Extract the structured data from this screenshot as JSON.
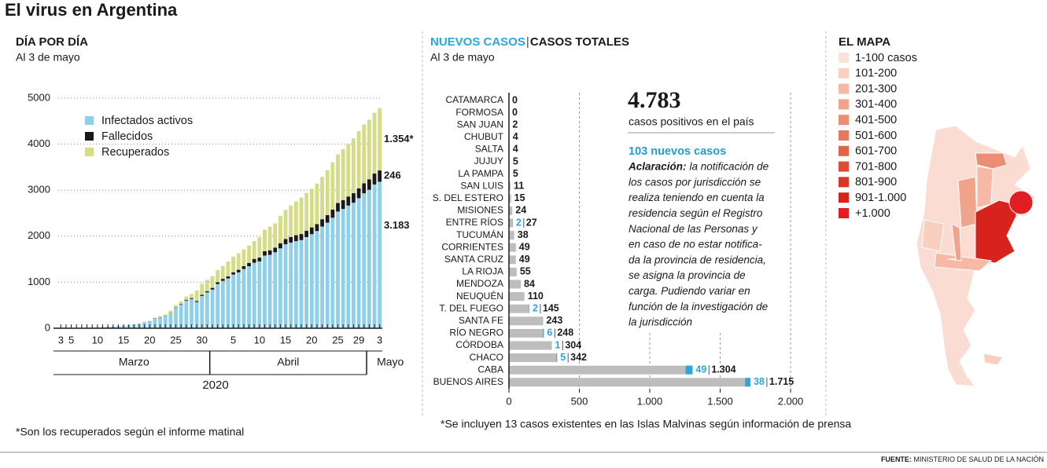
{
  "title": "El virus en Argentina",
  "chart_data": [
    {
      "type": "bar",
      "stacked": true,
      "title": "DÍA POR DÍA",
      "subtitle": "Al 3 de mayo",
      "x": [
        "2020-03-03",
        "2020-03-04",
        "2020-03-05",
        "2020-03-06",
        "2020-03-07",
        "2020-03-08",
        "2020-03-09",
        "2020-03-10",
        "2020-03-11",
        "2020-03-12",
        "2020-03-13",
        "2020-03-14",
        "2020-03-15",
        "2020-03-16",
        "2020-03-17",
        "2020-03-18",
        "2020-03-19",
        "2020-03-20",
        "2020-03-21",
        "2020-03-22",
        "2020-03-23",
        "2020-03-24",
        "2020-03-25",
        "2020-03-26",
        "2020-03-27",
        "2020-03-28",
        "2020-03-29",
        "2020-03-30",
        "2020-03-31",
        "2020-04-01",
        "2020-04-02",
        "2020-04-03",
        "2020-04-04",
        "2020-04-05",
        "2020-04-06",
        "2020-04-07",
        "2020-04-08",
        "2020-04-09",
        "2020-04-10",
        "2020-04-11",
        "2020-04-12",
        "2020-04-13",
        "2020-04-14",
        "2020-04-15",
        "2020-04-16",
        "2020-04-17",
        "2020-04-18",
        "2020-04-19",
        "2020-04-20",
        "2020-04-21",
        "2020-04-22",
        "2020-04-23",
        "2020-04-24",
        "2020-04-25",
        "2020-04-26",
        "2020-04-27",
        "2020-04-28",
        "2020-04-29",
        "2020-04-30",
        "2020-05-01",
        "2020-05-02",
        "2020-05-03"
      ],
      "xticks": [
        {
          "value": "2020-03-03",
          "label": "3"
        },
        {
          "value": "2020-03-05",
          "label": "5"
        },
        {
          "value": "2020-03-10",
          "label": "10"
        },
        {
          "value": "2020-03-15",
          "label": "15"
        },
        {
          "value": "2020-03-20",
          "label": "20"
        },
        {
          "value": "2020-03-25",
          "label": "25"
        },
        {
          "value": "2020-03-30",
          "label": "30"
        },
        {
          "value": "2020-04-05",
          "label": "5"
        },
        {
          "value": "2020-04-10",
          "label": "10"
        },
        {
          "value": "2020-04-15",
          "label": "15"
        },
        {
          "value": "2020-04-20",
          "label": "20"
        },
        {
          "value": "2020-04-25",
          "label": "25"
        },
        {
          "value": "2020-04-29",
          "label": "29"
        },
        {
          "value": "2020-05-03",
          "label": "3"
        }
      ],
      "months": [
        "Marzo",
        "Abril",
        "Mayo"
      ],
      "year": "2020",
      "series": [
        {
          "name": "Infectados activos",
          "color": "#8ecfea",
          "end_label": "3.183",
          "values": [
            1,
            1,
            2,
            2,
            7,
            11,
            16,
            18,
            20,
            29,
            32,
            43,
            54,
            63,
            77,
            94,
            125,
            152,
            218,
            235,
            270,
            329,
            442,
            514,
            601,
            635,
            569,
            702,
            779,
            841,
            960,
            1030,
            1082,
            1168,
            1214,
            1287,
            1348,
            1424,
            1452,
            1579,
            1595,
            1651,
            1736,
            1825,
            1861,
            1892,
            1915,
            1981,
            2044,
            2112,
            2210,
            2294,
            2401,
            2536,
            2593,
            2666,
            2728,
            2826,
            2933,
            3009,
            3124,
            3183
          ]
        },
        {
          "name": "Fallecidos",
          "color": "#1a1a1a",
          "end_label": "246",
          "values": [
            0,
            0,
            0,
            0,
            1,
            1,
            1,
            1,
            1,
            2,
            2,
            2,
            2,
            2,
            2,
            3,
            3,
            3,
            4,
            4,
            4,
            6,
            8,
            12,
            17,
            19,
            23,
            24,
            27,
            36,
            39,
            43,
            44,
            48,
            56,
            63,
            72,
            82,
            83,
            95,
            98,
            101,
            111,
            115,
            123,
            129,
            132,
            136,
            147,
            152,
            159,
            165,
            176,
            185,
            192,
            197,
            207,
            214,
            218,
            225,
            237,
            246
          ]
        },
        {
          "name": "Recuperados",
          "color": "#d5dc86",
          "end_label": "1.354*",
          "values": [
            0,
            0,
            0,
            0,
            0,
            0,
            0,
            0,
            0,
            0,
            0,
            0,
            0,
            0,
            0,
            0,
            0,
            3,
            3,
            27,
            27,
            52,
            52,
            63,
            72,
            91,
            228,
            240,
            248,
            256,
            266,
            280,
            325,
            338,
            358,
            365,
            375,
            388,
            440,
            468,
            515,
            525,
            596,
            631,
            685,
            737,
            792,
            824,
            840,
            880,
            919,
            976,
            1030,
            1059,
            1107,
            1140,
            1192,
            1245,
            1277,
            1298,
            1320,
            1354
          ]
        }
      ],
      "ylim": [
        0,
        5000
      ],
      "yticks": [
        0,
        1000,
        2000,
        3000,
        4000,
        5000
      ],
      "grid": true,
      "legend": "upper left",
      "note": "*Son los recuperados según el informe matinal"
    },
    {
      "type": "bar",
      "orientation": "horizontal",
      "subtitle": "Al 3 de mayo",
      "categories": [
        "CATAMARCA",
        "FORMOSA",
        "SAN JUAN",
        "CHUBUT",
        "SALTA",
        "JUJUY",
        "LA PAMPA",
        "SAN LUIS",
        "S. DEL ESTERO",
        "MISIONES",
        "ENTRE RÍOS",
        "TUCUMÁN",
        "CORRIENTES",
        "SANTA CRUZ",
        "LA RIOJA",
        "MENDOZA",
        "NEUQUÉN",
        "T. DEL FUEGO",
        "SANTA FE",
        "RÍO NEGRO",
        "CÓRDOBA",
        "CHACO",
        "CABA",
        "BUENOS AIRES"
      ],
      "series": [
        {
          "name": "NUEVOS CASOS",
          "color": "#2aa7dc",
          "values": [
            null,
            null,
            null,
            null,
            null,
            null,
            null,
            null,
            null,
            null,
            2,
            null,
            null,
            null,
            null,
            null,
            null,
            2,
            null,
            6,
            1,
            5,
            49,
            38
          ]
        },
        {
          "name": "CASOS TOTALES",
          "color": "#bdbdbd",
          "values": [
            0,
            0,
            2,
            4,
            4,
            5,
            5,
            11,
            15,
            24,
            27,
            38,
            49,
            49,
            55,
            84,
            110,
            145,
            243,
            248,
            304,
            342,
            1304,
            1715
          ],
          "value_labels": [
            "0",
            "0",
            "2",
            "4",
            "4",
            "5",
            "5",
            "11",
            "15",
            "24",
            "27",
            "38",
            "49",
            "49",
            "55",
            "84",
            "110",
            "145",
            "243",
            "248",
            "304",
            "342",
            "1.304",
            "1.715"
          ]
        }
      ],
      "xlim": [
        0,
        2000
      ],
      "xticks": [
        0,
        500,
        {
          "value": 1000,
          "label": "1.000"
        },
        {
          "value": 1500,
          "label": "1.500"
        },
        {
          "value": 2000,
          "label": "2.000"
        }
      ],
      "grid": true,
      "callout": {
        "value": "4.783",
        "text": "casos positivos en el país",
        "new": "103 nuevos casos",
        "note_label": "Aclaración:",
        "note_lines": [
          "la notificación de",
          "los casos por jurisdicción se",
          "realiza teniendo en cuenta la",
          "residencia según el Registro",
          "Nacional de las Personas y",
          "en caso de no estar notifica-",
          "da la provincia de residencia,",
          "se asigna la provincia de",
          "carga. Pudiendo variar en",
          "función de la investigación de",
          "la jurisdicción"
        ]
      },
      "note": "*Se incluyen 13 casos existentes en las Islas Malvinas según información de prensa"
    }
  ],
  "map": {
    "title": "EL MAPA",
    "legend": [
      {
        "label": "1-100 casos",
        "color": "#fce3da"
      },
      {
        "label": "101-200",
        "color": "#f9cfc0"
      },
      {
        "label": "201-300",
        "color": "#f5b9a6"
      },
      {
        "label": "301-400",
        "color": "#f0a48c"
      },
      {
        "label": "401-500",
        "color": "#ec8e73"
      },
      {
        "label": "501-600",
        "color": "#e7785c"
      },
      {
        "label": "601-700",
        "color": "#e26447"
      },
      {
        "label": "701-800",
        "color": "#dd4c36"
      },
      {
        "label": "801-900",
        "color": "#d93628"
      },
      {
        "label": "901-1.000",
        "color": "#d8231d"
      },
      {
        "label": "+1.000",
        "color": "#e01e23"
      }
    ]
  },
  "source": {
    "label": "FUENTE:",
    "text": "MINISTERIO DE SALUD DE LA NACIÓN"
  }
}
